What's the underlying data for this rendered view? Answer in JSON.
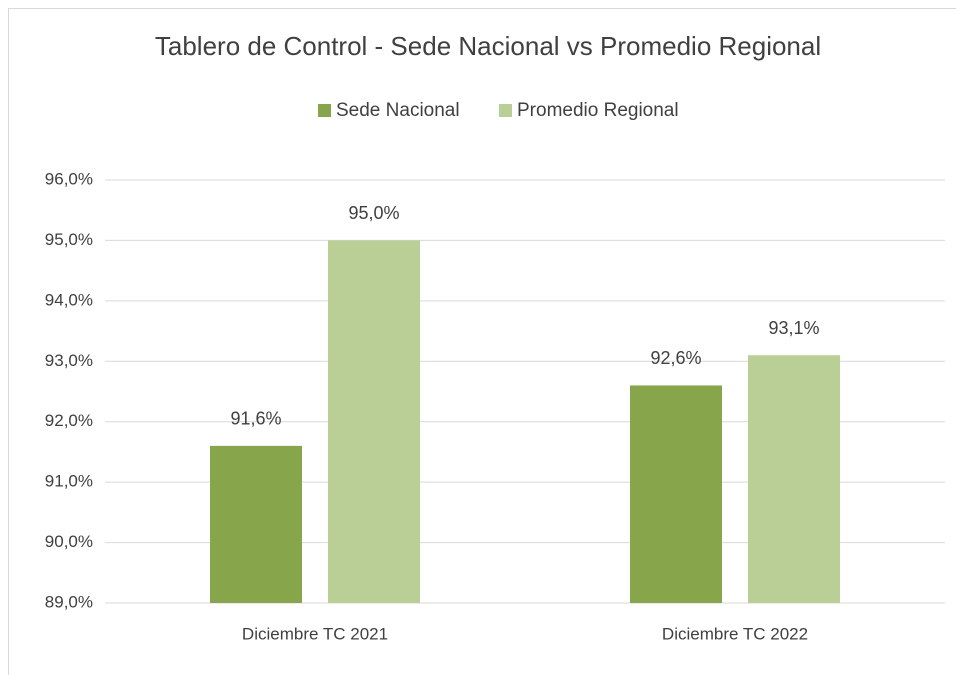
{
  "chart_data": {
    "type": "bar",
    "title": "Tablero de Control - Sede Nacional vs Promedio Regional",
    "categories": [
      "Diciembre TC 2021",
      "Diciembre TC 2022"
    ],
    "series": [
      {
        "name": "Sede Nacional",
        "color": "#87a54b",
        "values": [
          91.6,
          92.6
        ],
        "value_labels": [
          "91,6%",
          "92,6%"
        ]
      },
      {
        "name": "Promedio Regional",
        "color": "#b9cf95",
        "values": [
          95.0,
          93.1
        ],
        "value_labels": [
          "95,0%",
          "93,1%"
        ]
      }
    ],
    "ylim": [
      89,
      96
    ],
    "yticks": [
      {
        "value": 89,
        "label": "89,0%"
      },
      {
        "value": 90,
        "label": "90,0%"
      },
      {
        "value": 91,
        "label": "91,0%"
      },
      {
        "value": 92,
        "label": "92,0%"
      },
      {
        "value": 93,
        "label": "93,0%"
      },
      {
        "value": 94,
        "label": "94,0%"
      },
      {
        "value": 95,
        "label": "95,0%"
      },
      {
        "value": 96,
        "label": "96,0%"
      }
    ],
    "grid": true,
    "legend": "top"
  }
}
